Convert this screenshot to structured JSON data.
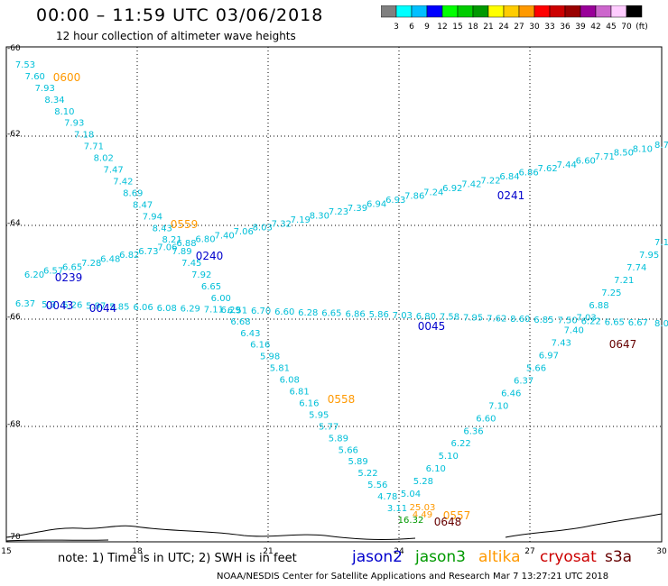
{
  "title": "00:00 – 11:59 UTC 03/06/2018",
  "subtitle": "12 hour collection of altimeter wave heights",
  "colorbar": {
    "labels": [
      "3",
      "6",
      "9",
      "12",
      "15",
      "18",
      "21",
      "24",
      "27",
      "30",
      "33",
      "36",
      "39",
      "42",
      "45",
      "70",
      "(ft)"
    ],
    "colors": [
      "#808080",
      "#00ffff",
      "#00bfff",
      "#0000ff",
      "#00ff00",
      "#00cc00",
      "#009900",
      "#ffff00",
      "#ffcc00",
      "#ff9900",
      "#ff0000",
      "#cc0000",
      "#990000",
      "#990099",
      "#cc66cc",
      "#ffccff",
      "#000000"
    ]
  },
  "axes": {
    "lat_ticks": [
      "-60",
      "-62",
      "-64",
      "-66",
      "-68",
      "-70"
    ],
    "lon_ticks": [
      "15",
      "18",
      "21",
      "24",
      "27",
      "30"
    ]
  },
  "satellite_colors": {
    "jason2": "#0000cc",
    "jason3": "#009900",
    "altika": "#ff9900",
    "cryosat": "#cc0000",
    "s3a": "#660000",
    "cyan": "#00bfd8",
    "brown": "#660000"
  },
  "tracks": [
    {
      "id": "t1",
      "color": "cyan",
      "values": [
        "7.53",
        "7.60",
        "7.93",
        "8.34",
        "8.10",
        "7.93",
        "7.18",
        "7.71",
        "8.02",
        "7.47",
        "7.42",
        "8.69",
        "8.47",
        "7.94",
        "8.43",
        "8.21",
        "7.89",
        "7.45",
        "7.92",
        "6.65",
        "6.00",
        "6.29",
        "6.68",
        "6.43",
        "6.16",
        "5.98",
        "5.81",
        "6.08",
        "6.81",
        "6.16",
        "5.95",
        "5.77",
        "5.89",
        "5.66",
        "5.89",
        "5.22",
        "5.56",
        "4.78",
        "3.11"
      ]
    },
    {
      "id": "t2",
      "color": "cyan",
      "values": [
        "6.20",
        "6.57",
        "6.65",
        "7.28",
        "6.48",
        "6.82",
        "6.73",
        "7.06",
        "6.88",
        "6.80",
        "7.40",
        "7.06",
        "8.03",
        "7.32",
        "7.19",
        "8.30",
        "7.23",
        "7.39",
        "6.94",
        "6.93",
        "7.86",
        "7.24",
        "6.92",
        "7.42",
        "7.22",
        "6.84",
        "6.86",
        "7.62",
        "7.44",
        "6.60",
        "7.71",
        "8.50",
        "8.10",
        "8.7"
      ]
    },
    {
      "id": "t3",
      "color": "cyan",
      "values": [
        "6.37",
        "5.9",
        "6.26",
        "5.97",
        "5.85",
        "6.06",
        "6.08",
        "6.29",
        "7.11",
        "6.51",
        "6.70",
        "6.60",
        "6.28",
        "6.65",
        "6.86",
        "5.86",
        "7.03",
        "6.80",
        "7.58",
        "7.95",
        "7.62",
        "8.60",
        "6.85",
        "7.50",
        "6.22",
        "6.65",
        "6.67",
        "8.0"
      ]
    },
    {
      "id": "t4",
      "color": "cyan",
      "values": [
        "5.04",
        "5.28",
        "6.10",
        "5.10",
        "6.22",
        "6.36",
        "6.60",
        "7.10",
        "6.46",
        "6.37",
        "5.66",
        "6.97",
        "7.43",
        "7.40",
        "7.03",
        "6.88",
        "7.25",
        "7.21",
        "7.74",
        "7.95",
        "7.1"
      ]
    },
    {
      "id": "t5",
      "color": "altika",
      "values": [
        "25.03",
        "4.49"
      ]
    },
    {
      "id": "t6",
      "color": "jason3",
      "values": [
        "16.32"
      ]
    }
  ],
  "time_labels": [
    {
      "text": "0600",
      "color": "altika"
    },
    {
      "text": "0559",
      "color": "altika"
    },
    {
      "text": "0240",
      "color": "jason2"
    },
    {
      "text": "0239",
      "color": "jason2"
    },
    {
      "text": "0043",
      "color": "jason2"
    },
    {
      "text": "0044",
      "color": "jason2"
    },
    {
      "text": "0241",
      "color": "jason2"
    },
    {
      "text": "0045",
      "color": "jason2"
    },
    {
      "text": "0558",
      "color": "altika"
    },
    {
      "text": "0557",
      "color": "altika"
    },
    {
      "text": "0648",
      "color": "brown"
    },
    {
      "text": "0647",
      "color": "brown"
    }
  ],
  "note": "note: 1) Time is in UTC; 2) SWH is in feet",
  "legend": [
    {
      "name": "jason2",
      "color": "jason2"
    },
    {
      "name": "jason3",
      "color": "jason3"
    },
    {
      "name": "altika",
      "color": "altika"
    },
    {
      "name": "cryosat",
      "color": "cryosat"
    },
    {
      "name": "s3a",
      "color": "s3a"
    }
  ],
  "footer": "NOAA/NESDIS Center for Satellite Applications and Research  Mar  7 13:27:21 UTC 2018"
}
